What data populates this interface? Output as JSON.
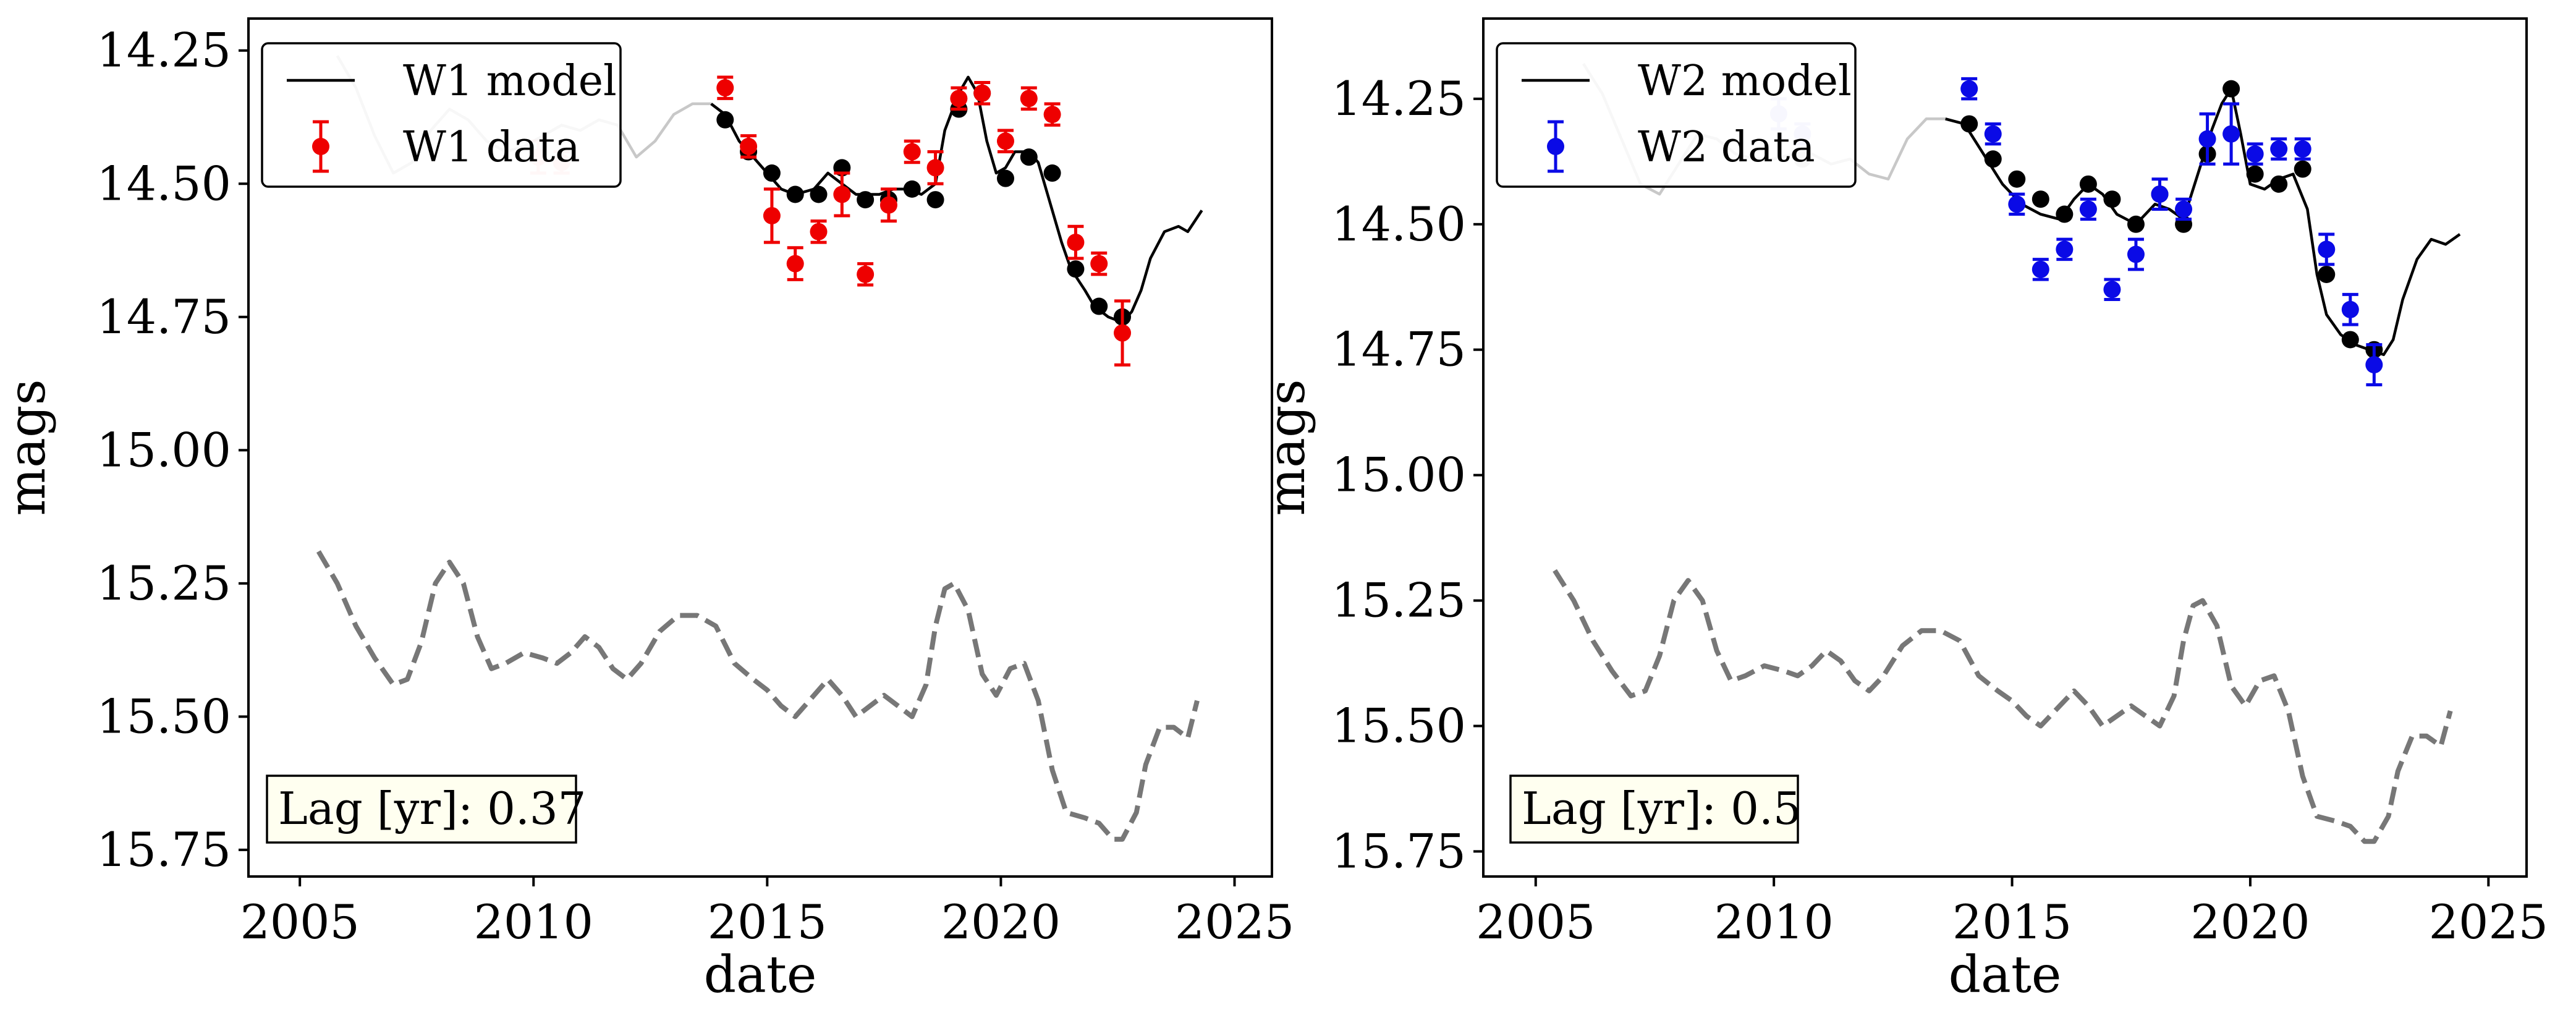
{
  "chart_data": [
    {
      "type": "line",
      "xlabel": "date",
      "ylabel": "mags",
      "xlim": [
        2003.9,
        2025.8
      ],
      "ylim": [
        15.8,
        14.19
      ],
      "y_inverted": true,
      "xticks": [
        2005,
        2010,
        2015,
        2020,
        2025
      ],
      "yticks": [
        14.25,
        14.5,
        14.75,
        15.0,
        15.25,
        15.5,
        15.75
      ],
      "ytick_labels": [
        "14.25",
        "14.50",
        "14.75",
        "15.00",
        "15.25",
        "15.50",
        "15.75"
      ],
      "xtick_labels": [
        "2005",
        "2010",
        "2015",
        "2020",
        "2025"
      ],
      "grid": false,
      "legend_position": "top-left",
      "legend": {
        "model_label": "W1 model",
        "data_label": "W1 data"
      },
      "lag_text": "Lag [yr]: 0.37",
      "colors": {
        "data": "#ee0000",
        "model": "#000000",
        "model_faded": "#c8c8c8",
        "dashed": "#777777",
        "sampled": "#000000",
        "lag_box_bg": "#fffff0"
      },
      "series": [
        {
          "name": "W1 model",
          "style": "solid",
          "faded_before_x": 2014.0,
          "x": [
            2005.8,
            2006.2,
            2006.6,
            2007.0,
            2007.4,
            2007.8,
            2008.2,
            2008.6,
            2009.0,
            2009.4,
            2009.8,
            2010.2,
            2010.6,
            2011.0,
            2011.4,
            2011.8,
            2012.2,
            2012.6,
            2013.0,
            2013.4,
            2013.8,
            2014.1,
            2014.4,
            2014.7,
            2015.0,
            2015.3,
            2015.6,
            2016.0,
            2016.3,
            2016.6,
            2016.9,
            2017.1,
            2017.4,
            2017.7,
            2018.0,
            2018.3,
            2018.6,
            2018.8,
            2019.1,
            2019.3,
            2019.5,
            2019.7,
            2019.9,
            2020.1,
            2020.3,
            2020.6,
            2020.8,
            2021.1,
            2021.3,
            2021.5,
            2021.8,
            2022.0,
            2022.3,
            2022.6,
            2022.8,
            2023.0,
            2023.2,
            2023.5,
            2023.8,
            2024.0,
            2024.3
          ],
          "y": [
            14.26,
            14.32,
            14.41,
            14.48,
            14.46,
            14.4,
            14.36,
            14.38,
            14.42,
            14.44,
            14.43,
            14.41,
            14.39,
            14.4,
            14.38,
            14.39,
            14.45,
            14.42,
            14.37,
            14.35,
            14.35,
            14.37,
            14.42,
            14.45,
            14.48,
            14.51,
            14.52,
            14.51,
            14.48,
            14.5,
            14.52,
            14.52,
            14.52,
            14.51,
            14.51,
            14.52,
            14.5,
            14.4,
            14.33,
            14.3,
            14.33,
            14.42,
            14.48,
            14.47,
            14.44,
            14.44,
            14.46,
            14.55,
            14.61,
            14.66,
            14.7,
            14.73,
            14.75,
            14.76,
            14.74,
            14.7,
            14.64,
            14.59,
            14.58,
            14.59,
            14.55
          ]
        },
        {
          "name": "",
          "style": "dashed",
          "x": [
            2005.4,
            2005.8,
            2006.2,
            2006.6,
            2007.0,
            2007.3,
            2007.6,
            2007.9,
            2008.2,
            2008.5,
            2008.8,
            2009.1,
            2009.4,
            2009.8,
            2010.2,
            2010.5,
            2010.8,
            2011.1,
            2011.4,
            2011.7,
            2012.0,
            2012.3,
            2012.7,
            2013.1,
            2013.5,
            2013.9,
            2014.3,
            2014.7,
            2015.0,
            2015.3,
            2015.6,
            2016.0,
            2016.3,
            2016.6,
            2016.9,
            2017.2,
            2017.5,
            2017.8,
            2018.1,
            2018.4,
            2018.6,
            2018.8,
            2019.0,
            2019.3,
            2019.6,
            2019.9,
            2020.2,
            2020.5,
            2020.8,
            2021.1,
            2021.4,
            2021.8,
            2022.1,
            2022.4,
            2022.6,
            2022.9,
            2023.1,
            2023.4,
            2023.7,
            2024.0,
            2024.2
          ],
          "y": [
            15.19,
            15.25,
            15.33,
            15.39,
            15.44,
            15.43,
            15.36,
            15.25,
            15.21,
            15.25,
            15.35,
            15.41,
            15.4,
            15.38,
            15.39,
            15.4,
            15.38,
            15.35,
            15.37,
            15.41,
            15.43,
            15.4,
            15.34,
            15.31,
            15.31,
            15.33,
            15.4,
            15.43,
            15.45,
            15.48,
            15.5,
            15.46,
            15.43,
            15.46,
            15.5,
            15.48,
            15.46,
            15.48,
            15.5,
            15.44,
            15.33,
            15.26,
            15.25,
            15.3,
            15.42,
            15.46,
            15.41,
            15.4,
            15.47,
            15.6,
            15.68,
            15.69,
            15.7,
            15.73,
            15.73,
            15.68,
            15.59,
            15.52,
            15.52,
            15.54,
            15.47
          ]
        }
      ],
      "sampled_points": {
        "x": [
          2014.1,
          2014.6,
          2015.1,
          2015.6,
          2016.1,
          2016.6,
          2017.1,
          2017.6,
          2018.1,
          2018.6,
          2019.1,
          2019.6,
          2020.1,
          2020.6,
          2021.1,
          2021.6,
          2022.1,
          2022.6
        ],
        "y": [
          14.38,
          14.44,
          14.48,
          14.52,
          14.52,
          14.47,
          14.53,
          14.53,
          14.51,
          14.53,
          14.36,
          14.33,
          14.49,
          14.45,
          14.48,
          14.66,
          14.73,
          14.75
        ]
      },
      "data_points": {
        "x": [
          2010.1,
          2010.6,
          2014.1,
          2014.6,
          2015.1,
          2015.6,
          2016.1,
          2016.6,
          2017.1,
          2017.6,
          2018.1,
          2018.6,
          2019.1,
          2019.6,
          2020.1,
          2020.6,
          2021.1,
          2021.6,
          2022.1,
          2022.6
        ],
        "y": [
          14.45,
          14.46,
          14.32,
          14.43,
          14.56,
          14.65,
          14.59,
          14.52,
          14.67,
          14.54,
          14.44,
          14.47,
          14.34,
          14.33,
          14.42,
          14.34,
          14.37,
          14.61,
          14.65,
          14.78
        ],
        "yerr": [
          0.03,
          0.02,
          0.02,
          0.02,
          0.05,
          0.03,
          0.02,
          0.04,
          0.02,
          0.03,
          0.02,
          0.03,
          0.02,
          0.02,
          0.02,
          0.02,
          0.02,
          0.03,
          0.02,
          0.06
        ],
        "faded_before_x": 2014.0
      }
    },
    {
      "type": "line",
      "xlabel": "date",
      "ylabel": "mags",
      "xlim": [
        2003.9,
        2025.8
      ],
      "ylim": [
        15.8,
        14.09
      ],
      "y_inverted": true,
      "xticks": [
        2005,
        2010,
        2015,
        2020,
        2025
      ],
      "yticks": [
        14.25,
        14.5,
        14.75,
        15.0,
        15.25,
        15.5,
        15.75
      ],
      "ytick_labels": [
        "14.25",
        "14.50",
        "14.75",
        "15.00",
        "15.25",
        "15.50",
        "15.75"
      ],
      "xtick_labels": [
        "2005",
        "2010",
        "2015",
        "2020",
        "2025"
      ],
      "grid": false,
      "legend_position": "top-left",
      "legend": {
        "model_label": "W2 model",
        "data_label": "W2 data"
      },
      "lag_text": "Lag [yr]: 0.5",
      "colors": {
        "data": "#0a0ae6",
        "model": "#000000",
        "model_faded": "#c8c8c8",
        "dashed": "#777777",
        "sampled": "#000000",
        "lag_box_bg": "#fffff0"
      },
      "series": [
        {
          "name": "W2 model",
          "style": "solid",
          "faded_before_x": 2014.0,
          "x": [
            2006.0,
            2006.4,
            2006.8,
            2007.2,
            2007.6,
            2008.0,
            2008.4,
            2008.8,
            2009.2,
            2009.6,
            2010.0,
            2010.4,
            2010.8,
            2011.2,
            2011.6,
            2012.0,
            2012.4,
            2012.8,
            2013.2,
            2013.6,
            2014.0,
            2014.4,
            2014.8,
            2015.2,
            2015.6,
            2016.0,
            2016.3,
            2016.6,
            2016.9,
            2017.2,
            2017.6,
            2018.0,
            2018.3,
            2018.6,
            2018.9,
            2019.2,
            2019.4,
            2019.6,
            2019.8,
            2020.0,
            2020.3,
            2020.6,
            2020.9,
            2021.2,
            2021.4,
            2021.6,
            2021.9,
            2022.2,
            2022.5,
            2022.8,
            2023.0,
            2023.2,
            2023.5,
            2023.8,
            2024.1,
            2024.4
          ],
          "y": [
            14.18,
            14.24,
            14.33,
            14.42,
            14.44,
            14.38,
            14.32,
            14.33,
            14.36,
            14.37,
            14.37,
            14.36,
            14.36,
            14.38,
            14.37,
            14.4,
            14.41,
            14.33,
            14.29,
            14.29,
            14.3,
            14.36,
            14.42,
            14.46,
            14.48,
            14.49,
            14.45,
            14.42,
            14.44,
            14.48,
            14.5,
            14.46,
            14.47,
            14.49,
            14.4,
            14.31,
            14.26,
            14.23,
            14.32,
            14.42,
            14.43,
            14.41,
            14.4,
            14.47,
            14.6,
            14.68,
            14.72,
            14.74,
            14.75,
            14.76,
            14.73,
            14.65,
            14.57,
            14.53,
            14.54,
            14.52
          ]
        },
        {
          "name": "",
          "style": "dashed",
          "x": [
            2005.4,
            2005.8,
            2006.2,
            2006.6,
            2007.0,
            2007.3,
            2007.6,
            2007.9,
            2008.2,
            2008.5,
            2008.8,
            2009.1,
            2009.4,
            2009.8,
            2010.2,
            2010.5,
            2010.8,
            2011.1,
            2011.4,
            2011.7,
            2012.0,
            2012.3,
            2012.7,
            2013.1,
            2013.5,
            2013.9,
            2014.3,
            2014.7,
            2015.0,
            2015.3,
            2015.6,
            2016.0,
            2016.3,
            2016.6,
            2016.9,
            2017.2,
            2017.5,
            2017.8,
            2018.1,
            2018.4,
            2018.6,
            2018.8,
            2019.0,
            2019.3,
            2019.6,
            2019.9,
            2020.2,
            2020.5,
            2020.8,
            2021.1,
            2021.4,
            2021.8,
            2022.1,
            2022.4,
            2022.6,
            2022.9,
            2023.1,
            2023.4,
            2023.7,
            2024.0,
            2024.2
          ],
          "y": [
            15.19,
            15.25,
            15.33,
            15.39,
            15.44,
            15.43,
            15.36,
            15.25,
            15.21,
            15.25,
            15.35,
            15.41,
            15.4,
            15.38,
            15.39,
            15.4,
            15.38,
            15.35,
            15.37,
            15.41,
            15.43,
            15.4,
            15.34,
            15.31,
            15.31,
            15.33,
            15.4,
            15.43,
            15.45,
            15.48,
            15.5,
            15.46,
            15.43,
            15.46,
            15.5,
            15.48,
            15.46,
            15.48,
            15.5,
            15.44,
            15.33,
            15.26,
            15.25,
            15.3,
            15.42,
            15.46,
            15.41,
            15.4,
            15.47,
            15.6,
            15.68,
            15.69,
            15.7,
            15.73,
            15.73,
            15.68,
            15.59,
            15.52,
            15.52,
            15.54,
            15.47
          ]
        }
      ],
      "sampled_points": {
        "x": [
          2010.6,
          2014.1,
          2014.6,
          2015.1,
          2015.6,
          2016.1,
          2016.6,
          2017.1,
          2017.6,
          2018.1,
          2018.6,
          2019.1,
          2019.6,
          2020.1,
          2020.6,
          2021.1,
          2021.6,
          2022.1,
          2022.6
        ],
        "y": [
          14.37,
          14.3,
          14.37,
          14.41,
          14.45,
          14.48,
          14.42,
          14.45,
          14.5,
          14.44,
          14.5,
          14.36,
          14.23,
          14.4,
          14.42,
          14.39,
          14.6,
          14.73,
          14.75
        ]
      },
      "data_points": {
        "x": [
          2010.1,
          2010.6,
          2014.1,
          2014.6,
          2015.1,
          2015.6,
          2016.1,
          2016.6,
          2017.1,
          2017.6,
          2018.1,
          2018.6,
          2019.1,
          2019.6,
          2020.1,
          2020.6,
          2021.1,
          2021.6,
          2022.1,
          2022.6
        ],
        "y": [
          14.28,
          14.32,
          14.23,
          14.32,
          14.46,
          14.59,
          14.55,
          14.47,
          14.63,
          14.56,
          14.44,
          14.47,
          14.33,
          14.32,
          14.36,
          14.35,
          14.35,
          14.55,
          14.67,
          14.78
        ],
        "yerr": [
          0.03,
          0.02,
          0.02,
          0.02,
          0.02,
          0.02,
          0.02,
          0.02,
          0.02,
          0.03,
          0.03,
          0.02,
          0.05,
          0.06,
          0.02,
          0.02,
          0.02,
          0.03,
          0.03,
          0.04
        ],
        "faded_before_x": 2014.0
      }
    }
  ]
}
